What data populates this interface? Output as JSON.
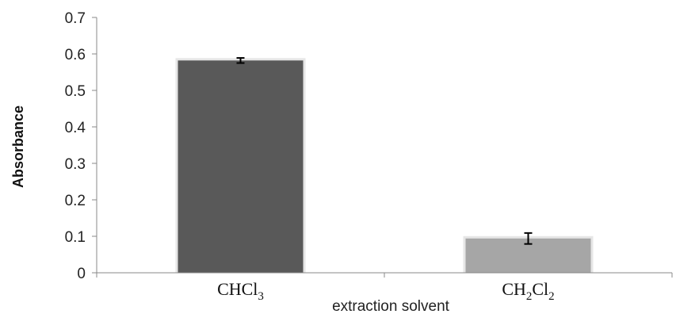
{
  "chart_data": {
    "type": "bar",
    "categories": [
      "CHCl3",
      "CH2Cl2"
    ],
    "category_labels": [
      {
        "base": "CHCl",
        "sub": "3",
        "base2": "",
        "sub2": ""
      },
      {
        "base": "CH",
        "sub": "2",
        "base2": "Cl",
        "sub2": "2"
      }
    ],
    "values": [
      0.582,
      0.094
    ],
    "errors": [
      0.007,
      0.015
    ],
    "bar_colors": [
      "#595959",
      "#a6a6a6"
    ],
    "xlabel": "extraction solvent",
    "ylabel": "Absorbance",
    "ylim": [
      0,
      0.7
    ],
    "yticks": [
      0,
      0.1,
      0.2,
      0.3,
      0.4,
      0.5,
      0.6,
      0.7
    ],
    "grid": false
  }
}
